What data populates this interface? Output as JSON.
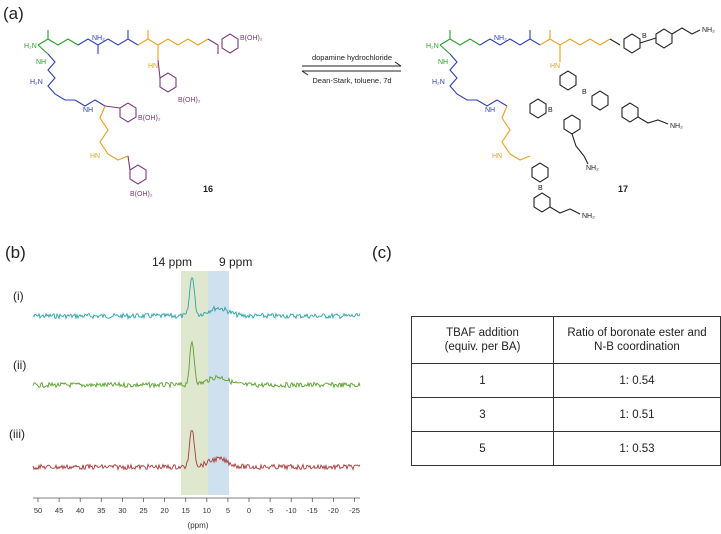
{
  "panels": {
    "a": "(a)",
    "b": "(b)",
    "c": "(c)"
  },
  "scheme": {
    "reagent_top": "dopamine hydrochloride",
    "reagent_bottom": "Dean-Stark, toluene, 7d",
    "compound_left": "16",
    "compound_right": "17",
    "labels": {
      "h2n": "H₂N",
      "nh": "NH",
      "hn": "HN",
      "nh2": "NH₂",
      "h2n_alt": "H₂N",
      "h": "H",
      "n": "N",
      "o": "O",
      "b": "B",
      "boh2": "B(OH)₂",
      "b_oh2": "B(OH)₂"
    }
  },
  "spectrum": {
    "peak_label_1": "14 ppm",
    "peak_label_2": "9 ppm",
    "traces": [
      {
        "label": "(i)",
        "color": "#2aa3a8"
      },
      {
        "label": "(ii)",
        "color": "#5aa02c"
      },
      {
        "label": "(iii)",
        "color": "#a63a3a"
      }
    ],
    "xlabel": "(ppm)",
    "ticks": [
      "50",
      "45",
      "40",
      "35",
      "30",
      "25",
      "20",
      "15",
      "10",
      "5",
      "0",
      "-5",
      "-10",
      "-15",
      "-20",
      "-25"
    ],
    "highlight_colors": {
      "band_14": "#dfe8cf",
      "band_9": "#cfe0ef"
    }
  },
  "table": {
    "headers": [
      "TBAF addition (equiv. per BA)",
      "Ratio of boronate ester and N-B coordination"
    ],
    "header_lines": [
      [
        "TBAF addition",
        "(equiv. per BA)"
      ],
      [
        "Ratio of boronate ester and",
        "N-B coordination"
      ]
    ],
    "rows": [
      [
        "1",
        "1: 0.54"
      ],
      [
        "3",
        "1: 0.51"
      ],
      [
        "5",
        "1: 0.53"
      ]
    ]
  }
}
